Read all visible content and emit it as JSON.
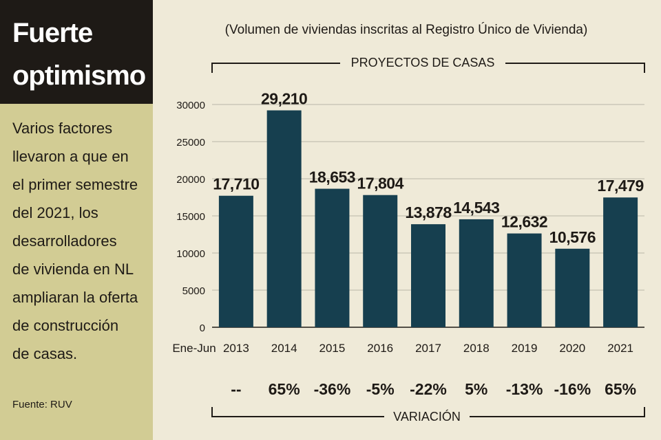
{
  "sidebar": {
    "title_lines": [
      "Fuerte",
      "optimismo"
    ],
    "description_lines": [
      "Varios factores",
      "llevaron a que en",
      "el primer semestre",
      "del 2021, los",
      "desarrolladores",
      "de vivienda en NL",
      "ampliaran la oferta",
      "de construcción",
      "de casas."
    ],
    "source": "Fuente: RUV"
  },
  "colors": {
    "bar": "#163f4f",
    "sidebar_bg": "#d2cc94",
    "title_bg": "#1e1a16",
    "panel_bg": "#efead8",
    "grid": "#b9b6a8"
  },
  "chart_data": {
    "type": "bar",
    "subtitle": "(Volumen de viviendas inscritas al Registro Único de Vivienda)",
    "title": "PROYECTOS DE CASAS",
    "x_prefix_label": "Ene-Jun",
    "categories": [
      "2013",
      "2014",
      "2015",
      "2016",
      "2017",
      "2018",
      "2019",
      "2020",
      "2021"
    ],
    "values": [
      17710,
      29210,
      18653,
      17804,
      13878,
      14543,
      12632,
      10576,
      17479
    ],
    "value_labels": [
      "17,710",
      "29,210",
      "18,653",
      "17,804",
      "13,878",
      "14,543",
      "12,632",
      "10,576",
      "17,479"
    ],
    "ylim": [
      0,
      30000
    ],
    "yticks": [
      0,
      5000,
      10000,
      15000,
      20000,
      25000,
      30000
    ],
    "grid": true,
    "variation_label": "VARIACIÓN",
    "variation": [
      "--",
      "65%",
      "-36%",
      "-5%",
      "-22%",
      "5%",
      "-13%",
      "-16%",
      "65%"
    ]
  }
}
